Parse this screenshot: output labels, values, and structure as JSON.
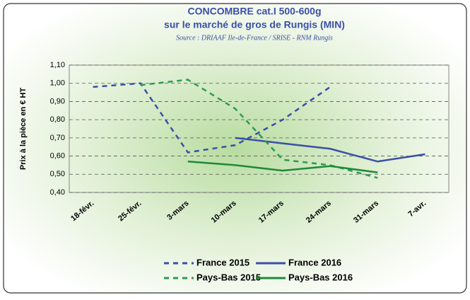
{
  "chart_data": {
    "type": "line",
    "title": "CONCOMBRE cat.I 500-600g",
    "subtitle": "sur le marché de gros de Rungis (MIN)",
    "source": "Source : DRIAAF Ile-de-France / SRISE - RNM Rungis",
    "y_label": "Prix à la pièce en € HT",
    "categories": [
      "18-févr.",
      "25-févr.",
      "3-mars",
      "10-mars",
      "17-mars",
      "24-mars",
      "31-mars",
      "7-avr."
    ],
    "series": [
      {
        "name": "France 2015",
        "color": "#3b4fa8",
        "dashed": true,
        "values": [
          0.98,
          1.0,
          0.62,
          0.66,
          0.8,
          0.98,
          null,
          null
        ]
      },
      {
        "name": "France 2016",
        "color": "#3b4fa8",
        "dashed": false,
        "values": [
          null,
          null,
          null,
          0.7,
          0.67,
          0.64,
          0.57,
          0.61
        ]
      },
      {
        "name": "Pays-Bas 2015",
        "color": "#2e9a52",
        "dashed": true,
        "values": [
          null,
          0.99,
          1.02,
          0.86,
          0.58,
          0.55,
          0.48,
          null
        ]
      },
      {
        "name": "Pays-Bas 2016",
        "color": "#1e8a3a",
        "dashed": false,
        "values": [
          null,
          null,
          0.57,
          0.55,
          0.52,
          0.545,
          0.51,
          null
        ]
      }
    ],
    "ylim": [
      0.4,
      1.1
    ],
    "yticks": [
      {
        "value": 0.4,
        "label": "0,40"
      },
      {
        "value": 0.5,
        "label": "0,50"
      },
      {
        "value": 0.6,
        "label": "0,60"
      },
      {
        "value": 0.7,
        "label": "0,70"
      },
      {
        "value": 0.8,
        "label": "0,80"
      },
      {
        "value": 0.9,
        "label": "0,90"
      },
      {
        "value": 1.0,
        "label": "1,00"
      },
      {
        "value": 1.1,
        "label": "1,10"
      }
    ],
    "grid": true
  }
}
